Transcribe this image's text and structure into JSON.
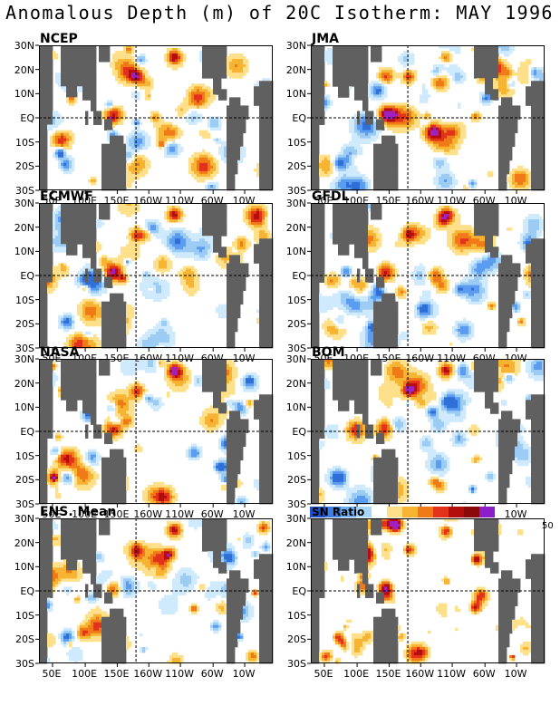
{
  "title": "Anomalous Depth (m) of 20C Isotherm: MAY 1996",
  "lat_labels": [
    "30N",
    "20N",
    "10N",
    "EQ",
    "10S",
    "20S",
    "30S"
  ],
  "lon_labels": [
    "50E",
    "100E",
    "150E",
    "160W",
    "110W",
    "60W",
    "10W"
  ],
  "panels": [
    {
      "name": "NCEP",
      "seed": 11
    },
    {
      "name": "JMA",
      "seed": 23
    },
    {
      "name": "ECMWF",
      "seed": 37
    },
    {
      "name": "GFDL",
      "seed": 41
    },
    {
      "name": "NASA",
      "seed": 53
    },
    {
      "name": "BOM",
      "seed": 67
    },
    {
      "name": "ENS. Mean",
      "seed": 79
    },
    {
      "name": "SN Ratio",
      "seed": 97
    }
  ],
  "anomaly_colors": [
    "#2f6fd8",
    "#5b9cf0",
    "#9cccf4",
    "#cfeafc",
    "#ffffff",
    "#ffe08a",
    "#f7b433",
    "#f07a18",
    "#e2321a",
    "#b40d0d",
    "#a020c0"
  ],
  "snr_colorbar": {
    "label": "SN Ratio",
    "max_label": "50",
    "colors": [
      "#1e4fc8",
      "#3d7fe6",
      "#6fb0f2",
      "#a8d6f8",
      "#ffffff",
      "#ffe08a",
      "#f7b433",
      "#f07a18",
      "#e2321a",
      "#b40d0d",
      "#8a0a0a",
      "#8b1ec8"
    ]
  },
  "land_color": "#606060",
  "grid_line_color": "#000000"
}
